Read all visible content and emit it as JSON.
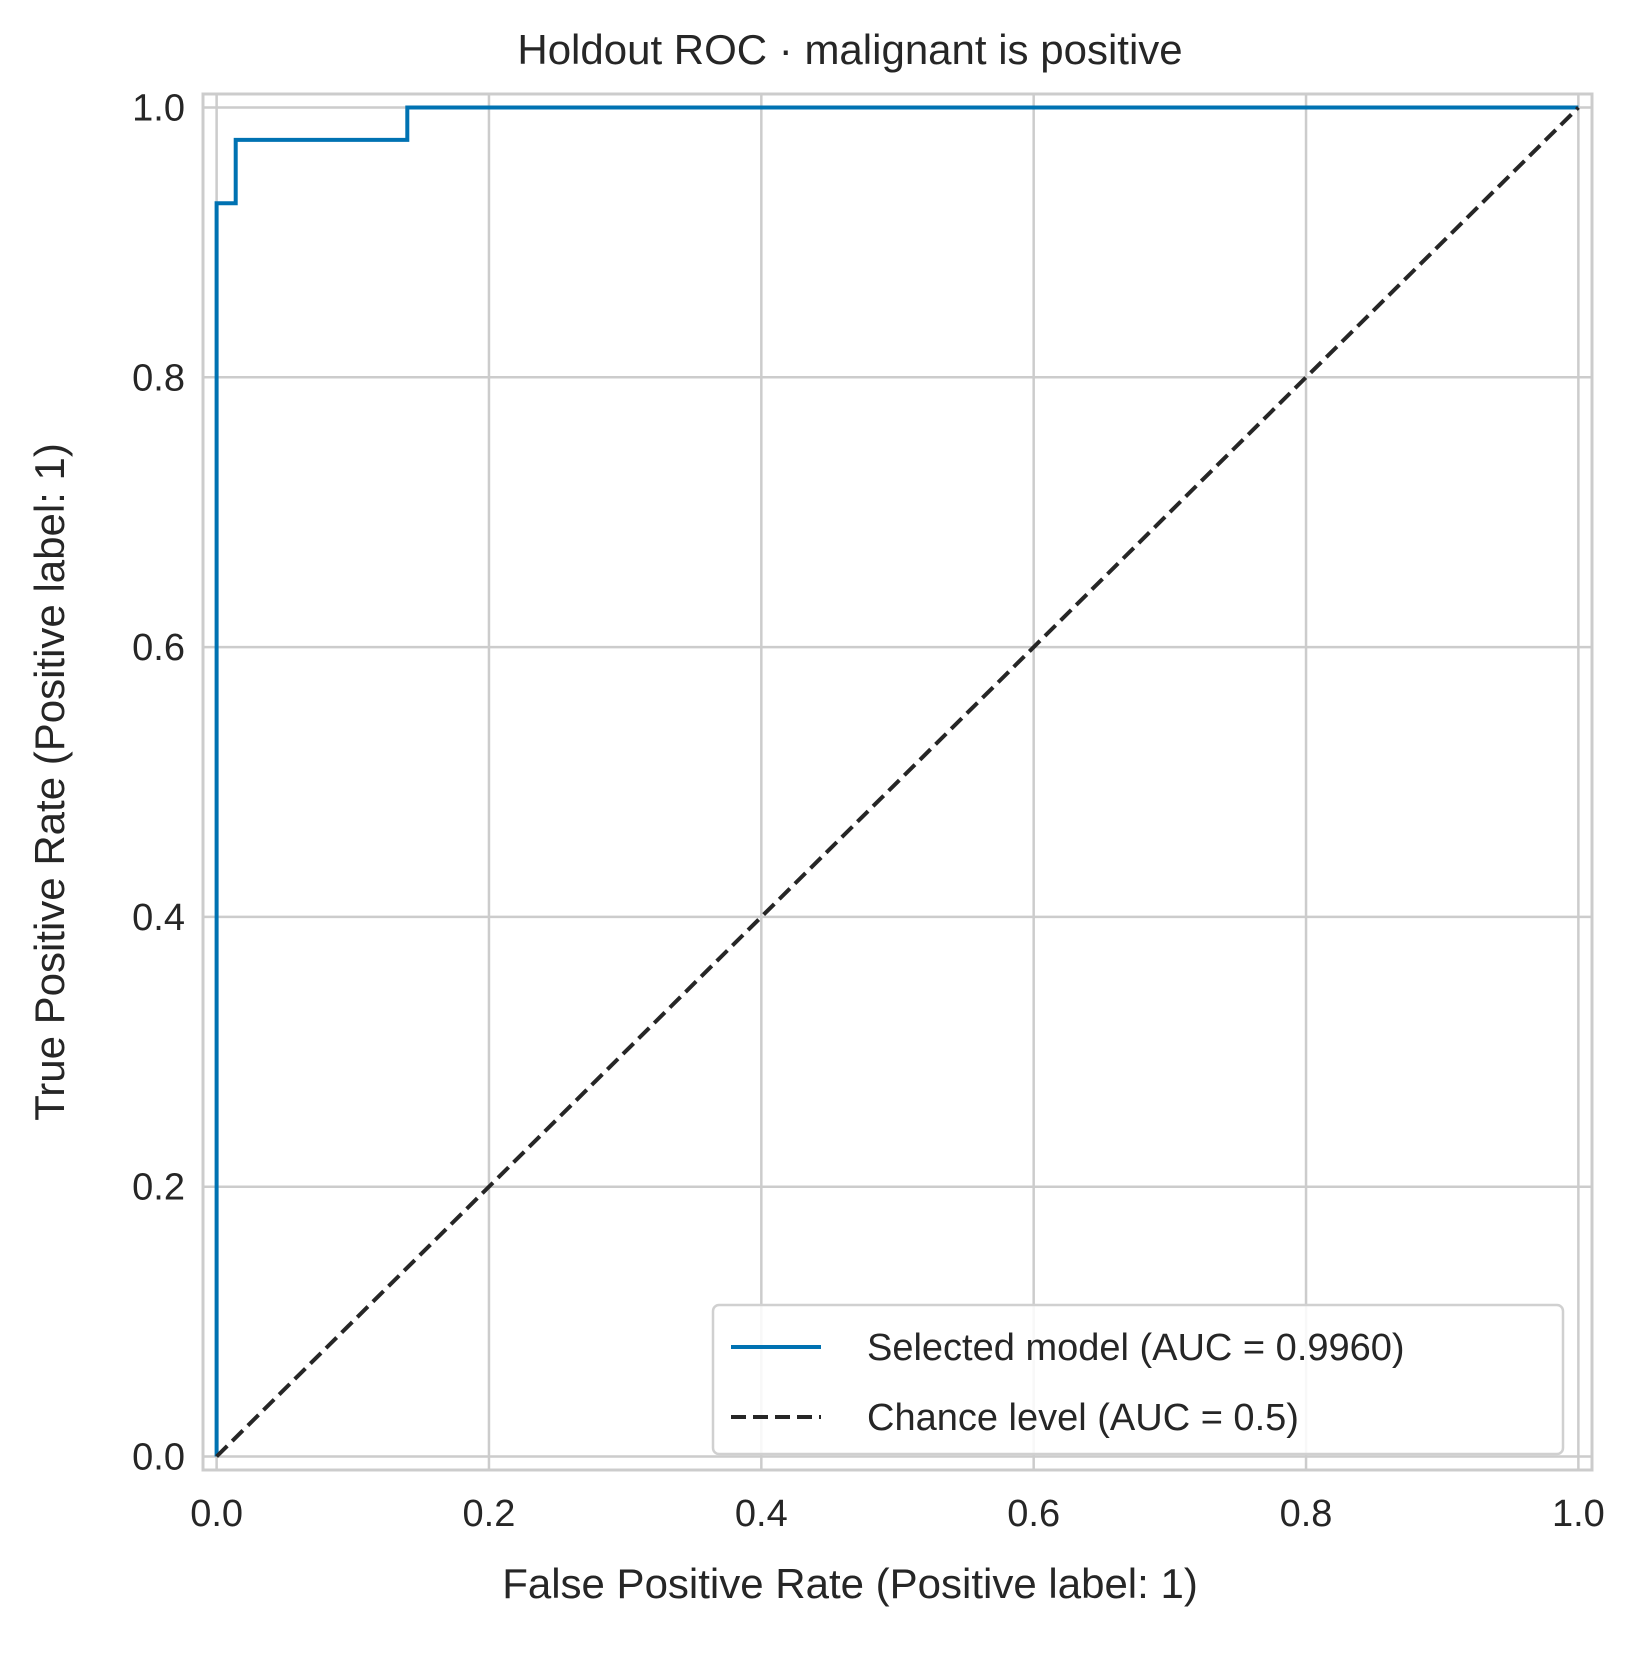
{
  "chart_data": {
    "type": "line",
    "title": "Holdout ROC · malignant is positive",
    "xlabel": "False Positive Rate (Positive label: 1)",
    "ylabel": "True Positive Rate (Positive label: 1)",
    "xlim": [
      -0.01,
      1.01
    ],
    "ylim": [
      -0.01,
      1.01
    ],
    "xticks": [
      0.0,
      0.2,
      0.4,
      0.6,
      0.8,
      1.0
    ],
    "yticks": [
      0.0,
      0.2,
      0.4,
      0.6,
      0.8,
      1.0
    ],
    "xtick_labels": [
      "0.0",
      "0.2",
      "0.4",
      "0.6",
      "0.8",
      "1.0"
    ],
    "ytick_labels": [
      "0.0",
      "0.2",
      "0.4",
      "0.6",
      "0.8",
      "1.0"
    ],
    "grid": true,
    "legend_position": "bottom-right",
    "series": [
      {
        "name": "Selected model (AUC = 0.9960)",
        "color": "#0072b2",
        "style": "solid",
        "x": [
          0.0,
          0.0,
          0.014,
          0.014,
          0.14,
          0.14,
          1.0
        ],
        "y": [
          0.0,
          0.929,
          0.929,
          0.976,
          0.976,
          1.0,
          1.0
        ]
      },
      {
        "name": "Chance level (AUC = 0.5)",
        "color": "#262626",
        "style": "dashed",
        "x": [
          0.0,
          1.0
        ],
        "y": [
          0.0,
          1.0
        ]
      }
    ]
  }
}
